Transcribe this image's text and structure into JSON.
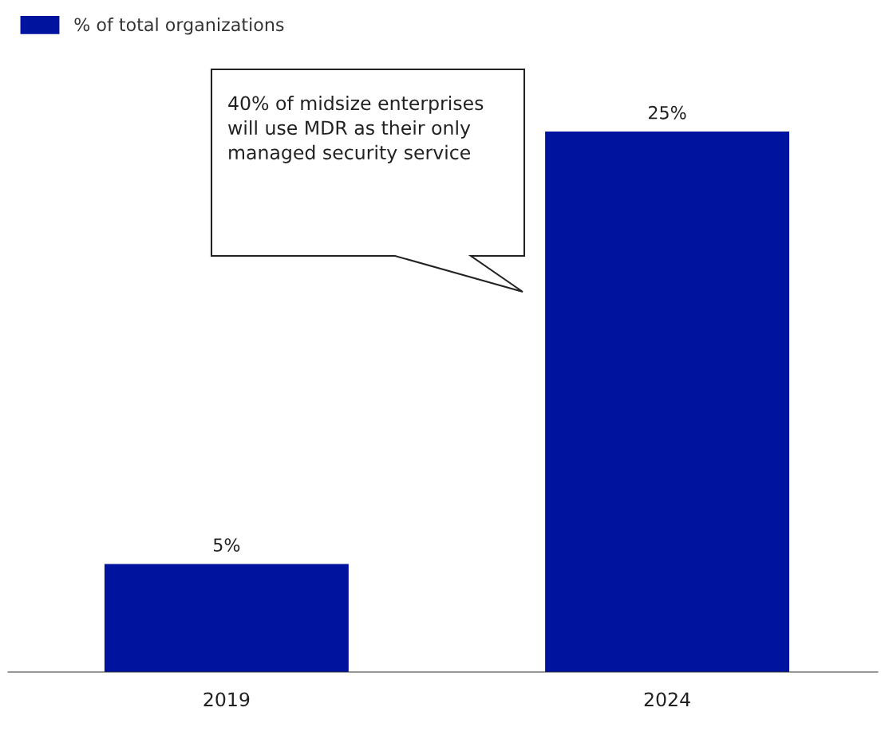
{
  "chart_data": {
    "type": "bar",
    "categories": [
      "2019",
      "2024"
    ],
    "series": [
      {
        "name": "% of total organizations",
        "color": "#00139f",
        "values": [
          5,
          25
        ],
        "value_labels": [
          "5%",
          "25%"
        ]
      }
    ],
    "annotations": [
      "40% of midsize enterprises will use MDR as their only managed security service"
    ],
    "legend": "top left",
    "grid": false
  }
}
